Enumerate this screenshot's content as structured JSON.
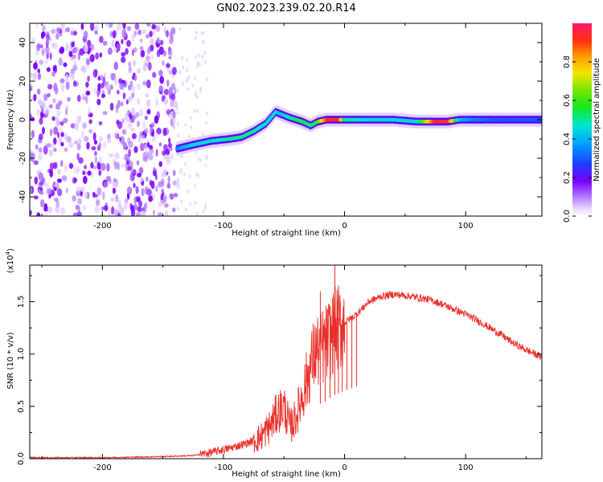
{
  "title": "GN02.2023.239.02.20.R14",
  "chart_data": [
    {
      "type": "heatmap",
      "xlabel": "Height of straight line (km)",
      "ylabel": "Frequency (Hz)",
      "xlim": [
        -260,
        163
      ],
      "ylim": [
        -50,
        50
      ],
      "xticks": [
        -200,
        -100,
        0,
        100
      ],
      "xtick_labels": [
        "-200",
        "-100",
        "0",
        "100"
      ],
      "yticks": [
        -40,
        -20,
        0,
        20,
        40
      ],
      "ytick_labels": [
        "-40",
        "-20",
        "0",
        "20",
        "40"
      ],
      "colorbar": {
        "label": "Normalized spectral amplitude",
        "range": [
          0,
          1
        ],
        "ticks": [
          0.0,
          0.2,
          0.4,
          0.6,
          0.8
        ],
        "tick_labels": [
          "0.0",
          "0.2",
          "0.4",
          "0.6",
          "0.8"
        ]
      },
      "noise_region_x": [
        -260,
        -138
      ],
      "ridge": {
        "x": [
          -138,
          -125,
          -110,
          -95,
          -85,
          -75,
          -65,
          -57,
          -53,
          -45,
          -35,
          -28,
          -22,
          -15,
          -5,
          0,
          20,
          40,
          60,
          75,
          85,
          95,
          105,
          125,
          150,
          163
        ],
        "frequency": [
          -15,
          -13,
          -11,
          -10,
          -9,
          -6,
          -2,
          4,
          3,
          1,
          -1,
          -3,
          -1,
          0,
          0,
          0,
          0,
          0,
          -1,
          -1,
          -1,
          0,
          0,
          0,
          0,
          0
        ],
        "amplitude": [
          0.35,
          0.45,
          0.45,
          0.5,
          0.5,
          0.5,
          0.45,
          0.45,
          0.4,
          0.5,
          0.55,
          0.5,
          0.6,
          0.9,
          0.95,
          0.5,
          0.45,
          0.45,
          0.45,
          0.95,
          0.95,
          0.4,
          0.35,
          0.3,
          0.3,
          0.3
        ]
      }
    },
    {
      "type": "line",
      "xlabel": "Height of straight line (km)",
      "ylabel": "SNR (10 * v/v)",
      "yscale_label": "(x10",
      "yscale_exp": "4",
      "yscale_close": ")",
      "xlim": [
        -260,
        163
      ],
      "ylim": [
        0,
        1.85
      ],
      "xticks": [
        -200,
        -100,
        0,
        100
      ],
      "xtick_labels": [
        "-200",
        "-100",
        "0",
        "100"
      ],
      "yticks": [
        0,
        0.5,
        1.0,
        1.5
      ],
      "ytick_labels": [
        "0.0",
        "0.5",
        "1.0",
        "1.5"
      ],
      "color": "#e8302a",
      "series": [
        {
          "x": [
            -260,
            -200,
            -150,
            -125,
            -110,
            -95,
            -80,
            -70,
            -62,
            -55,
            -50,
            -45,
            -40,
            -35,
            -30,
            -25,
            -20,
            -15,
            -10,
            0,
            10,
            20,
            30,
            40,
            50,
            60,
            70,
            80,
            90,
            100,
            110,
            120,
            130,
            140,
            150,
            163
          ],
          "y": [
            0.01,
            0.01,
            0.02,
            0.03,
            0.06,
            0.1,
            0.15,
            0.2,
            0.3,
            0.45,
            0.5,
            0.3,
            0.4,
            0.6,
            0.8,
            1.0,
            1.05,
            1.1,
            1.2,
            1.3,
            1.38,
            1.5,
            1.55,
            1.57,
            1.56,
            1.54,
            1.52,
            1.48,
            1.43,
            1.38,
            1.32,
            1.25,
            1.18,
            1.1,
            1.04,
            0.97
          ]
        }
      ],
      "spikes": {
        "x": [
          -20,
          -16,
          -12,
          -8,
          -5,
          -2,
          2,
          6,
          10
        ],
        "y": [
          1.6,
          1.25,
          1.45,
          1.85,
          1.35,
          1.2,
          1.3,
          1.35,
          1.4
        ]
      }
    }
  ]
}
